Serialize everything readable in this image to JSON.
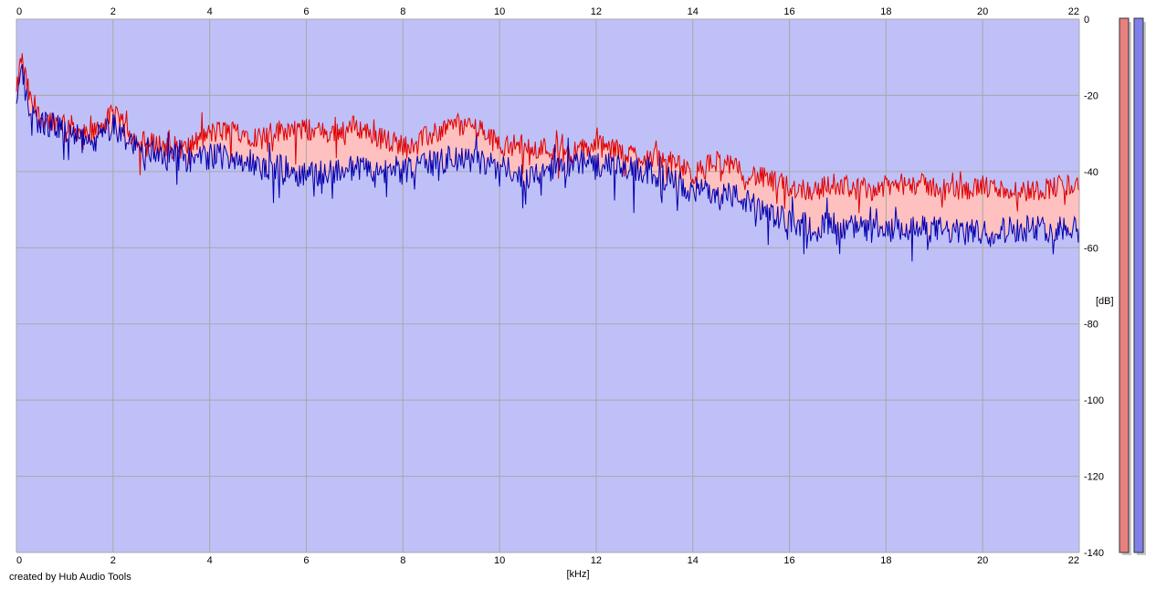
{
  "footer_text": "created by Hub Audio Tools",
  "colors": {
    "background": "#c0c0f8",
    "grid": "#a8a8a8",
    "channel_red_line": "#e00000",
    "channel_red_fill": "#ffc0c0",
    "channel_blue_line": "#0000b0",
    "channel_blue_fill": "#c0c0f8",
    "meter_red": "#e88080",
    "meter_blue": "#8080e8"
  },
  "chart_data": {
    "type": "area",
    "title": "",
    "xlabel": "[kHz]",
    "ylabel": "[dB]",
    "xlim": [
      0,
      22
    ],
    "ylim": [
      -140,
      0
    ],
    "x_ticks": [
      "0",
      "2",
      "4",
      "6",
      "8",
      "10",
      "12",
      "14",
      "16",
      "18",
      "20",
      "22"
    ],
    "y_ticks": [
      "0",
      "-20",
      "-40",
      "-60",
      "-80",
      "-100",
      "-120",
      "-140"
    ],
    "grid": true,
    "legend": "none",
    "series": [
      {
        "color": "#e00000",
        "x": [
          0,
          0.1,
          0.3,
          0.5,
          1,
          1.5,
          2,
          2.5,
          3,
          3.5,
          4,
          4.5,
          5,
          5.5,
          6,
          6.5,
          7,
          7.5,
          8,
          8.5,
          9,
          9.5,
          10,
          10.5,
          11,
          11.5,
          12,
          12.5,
          13,
          13.5,
          14,
          14.5,
          15,
          15.5,
          16,
          16.5,
          17,
          17.5,
          18,
          18.5,
          19,
          19.5,
          20,
          20.5,
          21,
          21.5,
          22
        ],
        "values": [
          -20,
          -10,
          -22,
          -26,
          -27,
          -31,
          -25,
          -32,
          -33,
          -34,
          -30,
          -29,
          -31,
          -29,
          -29,
          -30,
          -28,
          -31,
          -33,
          -31,
          -28,
          -28,
          -33,
          -33,
          -34,
          -35,
          -33,
          -35,
          -36,
          -37,
          -41,
          -37,
          -40,
          -42,
          -44,
          -45,
          -43,
          -45,
          -44,
          -43,
          -44,
          -45,
          -44,
          -45,
          -45,
          -44,
          -43
        ]
      },
      {
        "color": "#0000b0",
        "x": [
          0,
          0.1,
          0.3,
          0.5,
          1,
          1.5,
          2,
          2.5,
          3,
          3.5,
          4,
          4.5,
          5,
          5.5,
          6,
          6.5,
          7,
          7.5,
          8,
          8.5,
          9,
          9.5,
          10,
          10.5,
          11,
          11.5,
          12,
          12.5,
          13,
          13.5,
          14,
          14.5,
          15,
          15.5,
          16,
          16.5,
          17,
          17.5,
          18,
          18.5,
          19,
          19.5,
          20,
          20.5,
          21,
          21.5,
          22
        ],
        "values": [
          -22,
          -14,
          -25,
          -27,
          -29,
          -33,
          -28,
          -34,
          -35,
          -37,
          -36,
          -36,
          -39,
          -39,
          -41,
          -40,
          -39,
          -40,
          -40,
          -38,
          -37,
          -37,
          -39,
          -41,
          -40,
          -38,
          -38,
          -39,
          -40,
          -42,
          -45,
          -45,
          -47,
          -51,
          -53,
          -54,
          -54,
          -55,
          -56,
          -55,
          -55,
          -56,
          -56,
          -55,
          -55,
          -55,
          -54
        ]
      }
    ]
  }
}
